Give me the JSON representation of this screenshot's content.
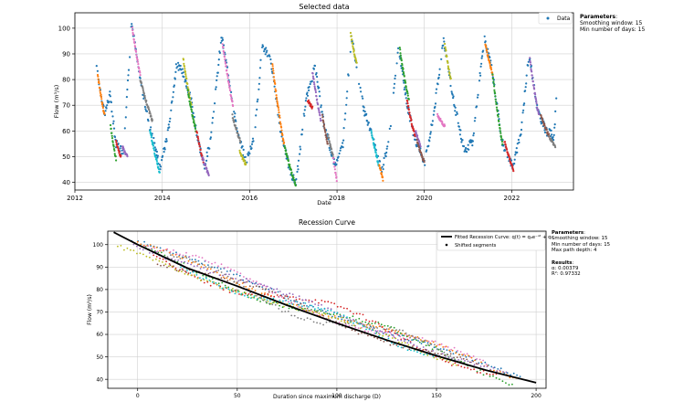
{
  "chart_data": [
    {
      "type": "scatter",
      "title": "Selected data",
      "xlabel": "Date",
      "ylabel": "Flow (m³/s)",
      "xlim": [
        "2012-01-01",
        "2023-06-01"
      ],
      "ylim": [
        37,
        106
      ],
      "x_ticks": [
        "2012",
        "2014",
        "2016",
        "2018",
        "2020",
        "2022"
      ],
      "y_ticks": [
        40,
        50,
        60,
        70,
        80,
        90,
        100
      ],
      "grid": true,
      "legend": {
        "location": "top-right",
        "entries": [
          "Data"
        ]
      },
      "base_series": {
        "name": "Data",
        "color": "#1f77b4",
        "keypoints": [
          [
            "2012-07-01",
            84
          ],
          [
            "2012-09-05",
            67
          ],
          [
            "2012-10-20",
            74
          ],
          [
            "2012-12-10",
            55
          ],
          [
            "2013-02-10",
            52
          ],
          [
            "2013-04-20",
            102
          ],
          [
            "2013-07-01",
            80
          ],
          [
            "2013-09-15",
            62
          ],
          [
            "2013-12-15",
            46
          ],
          [
            "2014-02-20",
            60
          ],
          [
            "2014-05-01",
            86
          ],
          [
            "2014-07-01",
            82
          ],
          [
            "2014-09-01",
            72
          ],
          [
            "2014-10-20",
            58
          ],
          [
            "2014-12-20",
            46
          ],
          [
            "2015-02-15",
            58
          ],
          [
            "2015-05-10",
            97
          ],
          [
            "2015-07-15",
            80
          ],
          [
            "2015-09-20",
            60
          ],
          [
            "2015-12-01",
            48
          ],
          [
            "2016-02-10",
            58
          ],
          [
            "2016-04-15",
            93
          ],
          [
            "2016-06-25",
            88
          ],
          [
            "2016-09-10",
            62
          ],
          [
            "2016-12-10",
            43
          ],
          [
            "2017-01-25",
            40
          ],
          [
            "2017-04-15",
            72
          ],
          [
            "2017-07-01",
            85
          ],
          [
            "2017-09-15",
            62
          ],
          [
            "2017-12-20",
            46
          ],
          [
            "2018-02-20",
            55
          ],
          [
            "2018-05-01",
            97
          ],
          [
            "2018-06-10",
            86
          ],
          [
            "2018-08-15",
            68
          ],
          [
            "2018-10-20",
            58
          ],
          [
            "2019-01-10",
            44
          ],
          [
            "2019-03-10",
            56
          ],
          [
            "2019-06-01",
            93
          ],
          [
            "2019-08-10",
            70
          ],
          [
            "2019-10-20",
            56
          ],
          [
            "2020-01-05",
            48
          ],
          [
            "2020-03-15",
            65
          ],
          [
            "2020-06-10",
            96
          ],
          [
            "2020-09-01",
            72
          ],
          [
            "2020-12-01",
            52
          ],
          [
            "2021-02-10",
            56
          ],
          [
            "2021-05-15",
            96
          ],
          [
            "2021-07-20",
            84
          ],
          [
            "2021-10-10",
            56
          ],
          [
            "2022-01-10",
            46
          ],
          [
            "2022-03-15",
            58
          ],
          [
            "2022-05-25",
            90
          ],
          [
            "2022-08-05",
            68
          ],
          [
            "2022-10-15",
            60
          ],
          [
            "2022-12-20",
            58
          ],
          [
            "2023-01-20",
            80
          ]
        ]
      },
      "segments": [
        {
          "color": "#ff7f0e",
          "start": [
            "2012-07-10",
            82
          ],
          "end": [
            "2012-09-05",
            66
          ]
        },
        {
          "color": "#2ca02c",
          "start": [
            "2012-10-25",
            62
          ],
          "end": [
            "2012-12-10",
            49
          ]
        },
        {
          "color": "#d62728",
          "start": [
            "2012-12-10",
            56
          ],
          "end": [
            "2013-01-20",
            50
          ]
        },
        {
          "color": "#9467bd",
          "start": [
            "2013-02-01",
            54
          ],
          "end": [
            "2013-03-15",
            50
          ]
        },
        {
          "color": "#e377c2",
          "start": [
            "2013-04-25",
            100
          ],
          "end": [
            "2013-07-01",
            82
          ]
        },
        {
          "color": "#7f7f7f",
          "start": [
            "2013-07-01",
            80
          ],
          "end": [
            "2013-10-10",
            64
          ]
        },
        {
          "color": "#17becf",
          "start": [
            "2013-09-20",
            60
          ],
          "end": [
            "2013-12-10",
            44
          ]
        },
        {
          "color": "#bcbd22",
          "start": [
            "2014-06-25",
            88
          ],
          "end": [
            "2014-09-01",
            70
          ]
        },
        {
          "color": "#2ca02c",
          "start": [
            "2014-08-01",
            76
          ],
          "end": [
            "2014-10-10",
            60
          ]
        },
        {
          "color": "#d62728",
          "start": [
            "2014-10-15",
            60
          ],
          "end": [
            "2014-12-10",
            48
          ]
        },
        {
          "color": "#9467bd",
          "start": [
            "2014-12-01",
            50
          ],
          "end": [
            "2015-01-25",
            43
          ]
        },
        {
          "color": "#e377c2",
          "start": [
            "2015-05-20",
            94
          ],
          "end": [
            "2015-08-15",
            70
          ]
        },
        {
          "color": "#7f7f7f",
          "start": [
            "2015-08-10",
            66
          ],
          "end": [
            "2015-10-15",
            56
          ]
        },
        {
          "color": "#bcbd22",
          "start": [
            "2015-10-10",
            52
          ],
          "end": [
            "2015-11-30",
            47
          ]
        },
        {
          "color": "#ff7f0e",
          "start": [
            "2016-07-10",
            86
          ],
          "end": [
            "2016-10-15",
            55
          ]
        },
        {
          "color": "#2ca02c",
          "start": [
            "2016-10-20",
            54
          ],
          "end": [
            "2017-01-20",
            39
          ]
        },
        {
          "color": "#d62728",
          "start": [
            "2017-05-01",
            72
          ],
          "end": [
            "2017-06-10",
            69
          ]
        },
        {
          "color": "#9467bd",
          "start": [
            "2017-06-10",
            83
          ],
          "end": [
            "2017-08-20",
            64
          ]
        },
        {
          "color": "#8c564b",
          "start": [
            "2017-09-01",
            66
          ],
          "end": [
            "2017-10-15",
            55
          ]
        },
        {
          "color": "#7f7f7f",
          "start": [
            "2017-10-20",
            58
          ],
          "end": [
            "2017-12-01",
            50
          ]
        },
        {
          "color": "#e377c2",
          "start": [
            "2017-12-01",
            50
          ],
          "end": [
            "2017-12-30",
            41
          ]
        },
        {
          "color": "#bcbd22",
          "start": [
            "2018-04-25",
            98
          ],
          "end": [
            "2018-06-15",
            86
          ]
        },
        {
          "color": "#17becf",
          "start": [
            "2018-10-15",
            60
          ],
          "end": [
            "2018-12-15",
            47
          ]
        },
        {
          "color": "#ff7f0e",
          "start": [
            "2018-12-20",
            47
          ],
          "end": [
            "2019-01-20",
            41
          ]
        },
        {
          "color": "#2ca02c",
          "start": [
            "2019-06-10",
            92
          ],
          "end": [
            "2019-08-25",
            72
          ]
        },
        {
          "color": "#d62728",
          "start": [
            "2019-08-10",
            72
          ],
          "end": [
            "2019-10-15",
            58
          ]
        },
        {
          "color": "#9467bd",
          "start": [
            "2019-10-20",
            60
          ],
          "end": [
            "2019-12-01",
            54
          ]
        },
        {
          "color": "#8c564b",
          "start": [
            "2019-11-01",
            56
          ],
          "end": [
            "2019-12-31",
            48
          ]
        },
        {
          "color": "#e377c2",
          "start": [
            "2020-04-20",
            66
          ],
          "end": [
            "2020-06-20",
            62
          ]
        },
        {
          "color": "#bcbd22",
          "start": [
            "2020-06-20",
            94
          ],
          "end": [
            "2020-08-10",
            80
          ]
        },
        {
          "color": "#ff7f0e",
          "start": [
            "2021-05-25",
            94
          ],
          "end": [
            "2021-07-25",
            82
          ]
        },
        {
          "color": "#2ca02c",
          "start": [
            "2021-07-25",
            82
          ],
          "end": [
            "2021-10-15",
            55
          ]
        },
        {
          "color": "#d62728",
          "start": [
            "2021-11-01",
            56
          ],
          "end": [
            "2022-01-15",
            45
          ]
        },
        {
          "color": "#9467bd",
          "start": [
            "2022-06-01",
            88
          ],
          "end": [
            "2022-08-15",
            66
          ]
        },
        {
          "color": "#8c564b",
          "start": [
            "2022-09-01",
            66
          ],
          "end": [
            "2022-11-10",
            58
          ]
        },
        {
          "color": "#7f7f7f",
          "start": [
            "2022-11-10",
            58
          ],
          "end": [
            "2022-12-31",
            54
          ]
        }
      ]
    },
    {
      "type": "scatter",
      "title": "Recession Curve",
      "xlabel": "Duration since maximum discharge (D)",
      "ylabel": "Flow (m³/s)",
      "xlim": [
        -15,
        205
      ],
      "ylim": [
        36,
        106
      ],
      "x_ticks": [
        0,
        50,
        100,
        150,
        200
      ],
      "y_ticks": [
        40,
        50,
        60,
        70,
        80,
        90,
        100
      ],
      "grid": true,
      "legend": {
        "location": "top-right",
        "entries": [
          "Fitted Recession Curve: q(t) = q₀e⁻ᵅᵗ + q₁",
          "Shifted segments"
        ]
      },
      "fit": {
        "name": "Fitted Recession Curve: q(t) = q₀e⁻ᵅᵗ + q₁",
        "color": "#000000",
        "points": [
          [
            -12,
            105.5
          ],
          [
            0,
            100
          ],
          [
            25,
            89.5
          ],
          [
            50,
            81.5
          ],
          [
            75,
            73
          ],
          [
            100,
            65
          ],
          [
            125,
            57.5
          ],
          [
            150,
            50.5
          ],
          [
            175,
            44
          ],
          [
            200,
            38.5
          ]
        ]
      },
      "segments": [
        {
          "name": "Shifted segments",
          "color": "#1f77b4",
          "start": [
            -3,
            102
          ],
          "end": [
            192,
            40
          ]
        },
        {
          "color": "#ff7f0e",
          "start": [
            0,
            99
          ],
          "end": [
            190,
            41
          ]
        },
        {
          "color": "#2ca02c",
          "start": [
            4,
            96
          ],
          "end": [
            188,
            41
          ]
        },
        {
          "color": "#d62728",
          "start": [
            8,
            95
          ],
          "end": [
            180,
            45
          ]
        },
        {
          "color": "#9467bd",
          "start": [
            -2,
            101
          ],
          "end": [
            185,
            42
          ]
        },
        {
          "color": "#8c564b",
          "start": [
            10,
            94
          ],
          "end": [
            170,
            45
          ]
        },
        {
          "color": "#e377c2",
          "start": [
            2,
            100
          ],
          "end": [
            175,
            45
          ]
        },
        {
          "color": "#7f7f7f",
          "start": [
            15,
            92
          ],
          "end": [
            165,
            47
          ]
        },
        {
          "color": "#bcbd22",
          "start": [
            -10,
            98
          ],
          "end": [
            160,
            48
          ]
        },
        {
          "color": "#17becf",
          "start": [
            20,
            90
          ],
          "end": [
            150,
            52
          ]
        }
      ]
    }
  ],
  "panels": {
    "top": {
      "heading": "Parameters",
      "lines": [
        "Smoothing window: 15",
        "Min number of days: 15"
      ]
    },
    "bottom": {
      "params_heading": "Parameters",
      "params_lines": [
        "Smoothing window: 15",
        "Min number of days: 15",
        "Max path depth: 4"
      ],
      "results_heading": "Results",
      "results_lines": [
        "α: 0.00379",
        "R²: 0.97332"
      ]
    }
  }
}
